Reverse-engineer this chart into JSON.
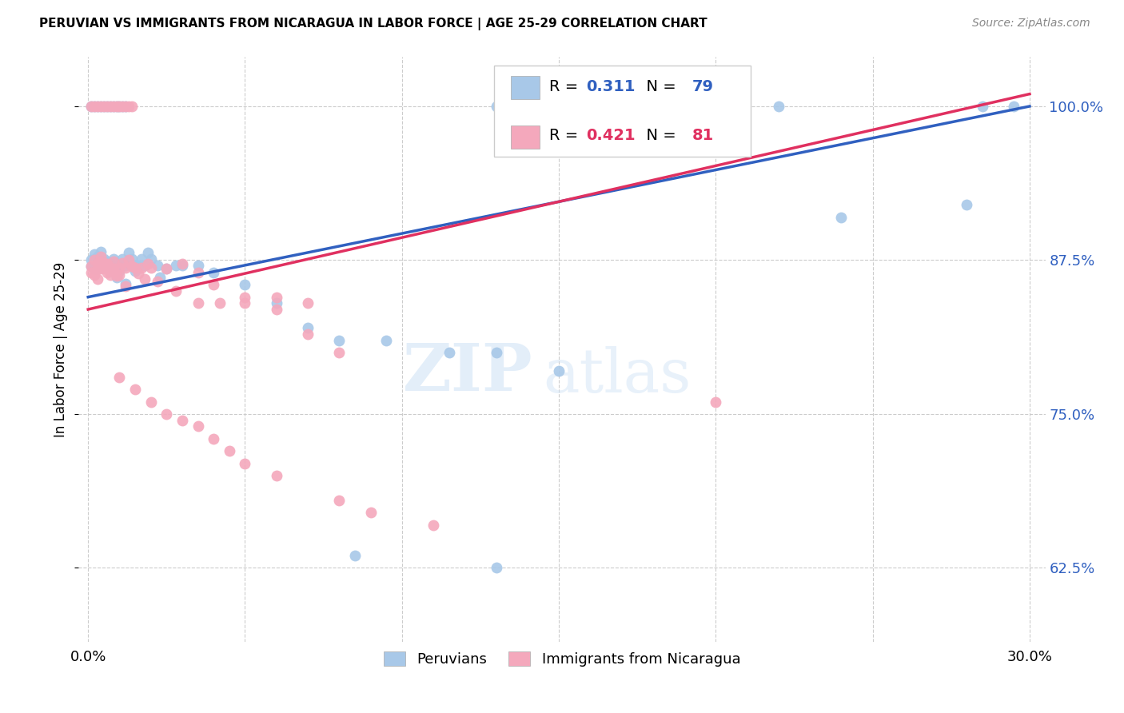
{
  "title": "PERUVIAN VS IMMIGRANTS FROM NICARAGUA IN LABOR FORCE | AGE 25-29 CORRELATION CHART",
  "source": "Source: ZipAtlas.com",
  "ylabel": "In Labor Force | Age 25-29",
  "xlim": [
    0.0,
    0.3
  ],
  "ylim": [
    0.565,
    1.04
  ],
  "yticks": [
    0.625,
    0.75,
    0.875,
    1.0
  ],
  "ytick_labels": [
    "62.5%",
    "75.0%",
    "87.5%",
    "100.0%"
  ],
  "xticks": [
    0.0,
    0.05,
    0.1,
    0.15,
    0.2,
    0.25,
    0.3
  ],
  "xtick_labels": [
    "0.0%",
    "",
    "",
    "",
    "",
    "",
    "30.0%"
  ],
  "blue_color": "#a8c8e8",
  "pink_color": "#f4a8bc",
  "blue_line_color": "#3060c0",
  "pink_line_color": "#e03060",
  "legend_r_blue": "0.311",
  "legend_n_blue": "79",
  "legend_r_pink": "0.421",
  "legend_n_pink": "81",
  "watermark": "ZIPatlas",
  "blue_line_x0": 0.0,
  "blue_line_y0": 0.845,
  "blue_line_x1": 0.3,
  "blue_line_y1": 1.0,
  "pink_line_x0": 0.0,
  "pink_line_y0": 0.835,
  "pink_line_x1": 0.3,
  "pink_line_y1": 1.01
}
